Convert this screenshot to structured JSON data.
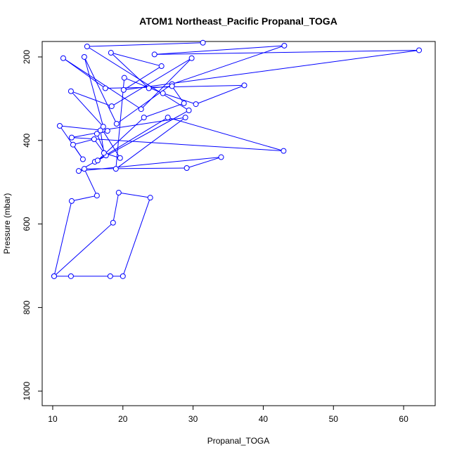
{
  "chart_data": {
    "type": "line",
    "title": "ATOM1 Northeast_Pacific Propanal_TOGA",
    "xlabel": "Propanal_TOGA",
    "ylabel": "Pressure (mbar)",
    "xlim": [
      8.5,
      64.5
    ],
    "ylim": [
      1035,
      163
    ],
    "y_reversed": true,
    "grid": false,
    "legend": "none",
    "line_color": "#0000ff",
    "x_ticks": [
      10,
      20,
      30,
      40,
      50,
      60
    ],
    "y_ticks": [
      200,
      400,
      600,
      800,
      1000
    ],
    "series": [
      {
        "x": [
          10.2,
          12.6,
          18.2,
          20.0,
          23.9,
          19.4,
          18.6,
          10.2,
          12.7,
          16.3,
          14.5,
          29.1,
          34.0,
          13.7,
          16.0,
          26.4,
          42.9,
          12.7,
          17.8,
          11.0,
          14.3,
          12.9,
          15.9,
          17.6,
          16.3,
          17.1,
          19.6,
          17.3,
          16.8,
          28.9,
          19.0,
          20.2,
          25.7,
          30.4,
          37.3,
          17.5,
          11.5,
          22.6,
          29.8,
          18.4,
          12.6,
          17.2,
          14.5,
          19.1,
          27.0,
          43.0,
          24.5,
          62.2,
          20.1,
          25.5,
          18.3,
          23.7,
          27.0,
          28.7,
          23.0,
          16.4,
          29.4,
          14.9,
          31.4
        ],
        "y": [
          725,
          725,
          725,
          725,
          537,
          525,
          597,
          725,
          545,
          532,
          468,
          466,
          440,
          473,
          451,
          345,
          425,
          393,
          377,
          365,
          445,
          410,
          397,
          436,
          384,
          375,
          442,
          430,
          376,
          345,
          468,
          250,
          287,
          313,
          268,
          275,
          203,
          325,
          203,
          318,
          282,
          367,
          200,
          360,
          265,
          173,
          194,
          184,
          279,
          222,
          190,
          275,
          270,
          311,
          345,
          448,
          328,
          175,
          166
        ]
      }
    ]
  }
}
